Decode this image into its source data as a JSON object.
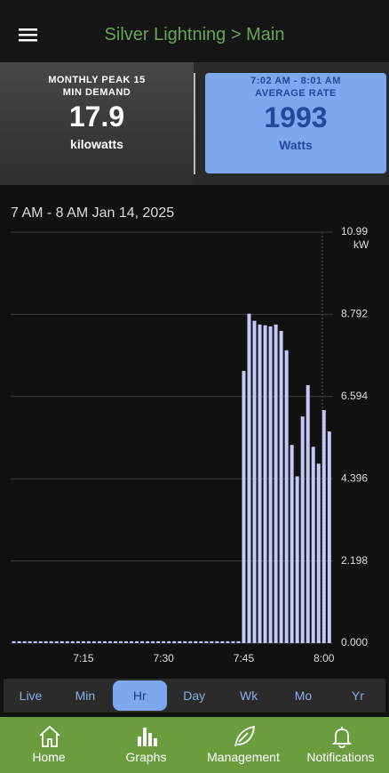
{
  "header": {
    "title": "Silver Lightning > Main"
  },
  "cards": [
    {
      "label": "MONTHLY PEAK 15 MIN DEMAND",
      "value": 17.9,
      "unit": "kilowatts"
    },
    {
      "label": "7:02 AM - 8:01 AM",
      "sublabel": "AVERAGE RATE",
      "value": 1993,
      "unit": "Watts"
    }
  ],
  "chart_data": {
    "type": "bar",
    "title": "7 AM - 8 AM Jan 14, 2025",
    "y_unit": "kW",
    "color": "#c6c9f7",
    "x": [
      2,
      3,
      4,
      5,
      6,
      7,
      8,
      9,
      10,
      11,
      12,
      13,
      14,
      15,
      16,
      17,
      18,
      19,
      20,
      21,
      22,
      23,
      24,
      25,
      26,
      27,
      28,
      29,
      30,
      31,
      32,
      33,
      34,
      35,
      36,
      37,
      38,
      39,
      40,
      41,
      42,
      43,
      44,
      45,
      46,
      47,
      48,
      49,
      50,
      51,
      52,
      53,
      54,
      55,
      56,
      57,
      58,
      59,
      60,
      61
    ],
    "values": [
      0.05,
      0.05,
      0.05,
      0.05,
      0.05,
      0.05,
      0.05,
      0.05,
      0.05,
      0.05,
      0.05,
      0.05,
      0.05,
      0.05,
      0.05,
      0.05,
      0.05,
      0.05,
      0.05,
      0.05,
      0.05,
      0.05,
      0.05,
      0.05,
      0.05,
      0.05,
      0.05,
      0.05,
      0.05,
      0.05,
      0.05,
      0.05,
      0.05,
      0.05,
      0.05,
      0.05,
      0.05,
      0.05,
      0.05,
      0.05,
      0.05,
      0.05,
      0.05,
      7.28,
      8.81,
      8.62,
      8.52,
      8.5,
      8.47,
      8.52,
      8.35,
      7.83,
      5.3,
      4.46,
      6.06,
      6.9,
      5.25,
      4.8,
      6.23,
      5.66
    ],
    "xlim": [
      1.4,
      61.7
    ],
    "xticks": [
      {
        "value": 15,
        "label": "7:15"
      },
      {
        "value": 30,
        "label": "7:30"
      },
      {
        "value": 45,
        "label": "7:45"
      },
      {
        "value": 60,
        "label": "8:00"
      }
    ],
    "ylim": [
      0,
      10.99
    ],
    "yticks": [
      {
        "value": 0,
        "label": "0.000"
      },
      2.198,
      4.396,
      6.594,
      8.792,
      10.99
    ],
    "grid": true
  },
  "tabs": [
    "Live",
    "Min",
    "Hr",
    "Day",
    "Wk",
    "Mo",
    "Yr"
  ],
  "selected_tab": 2,
  "nav": [
    "Home",
    "Graphs",
    "Management",
    "Notifications"
  ]
}
